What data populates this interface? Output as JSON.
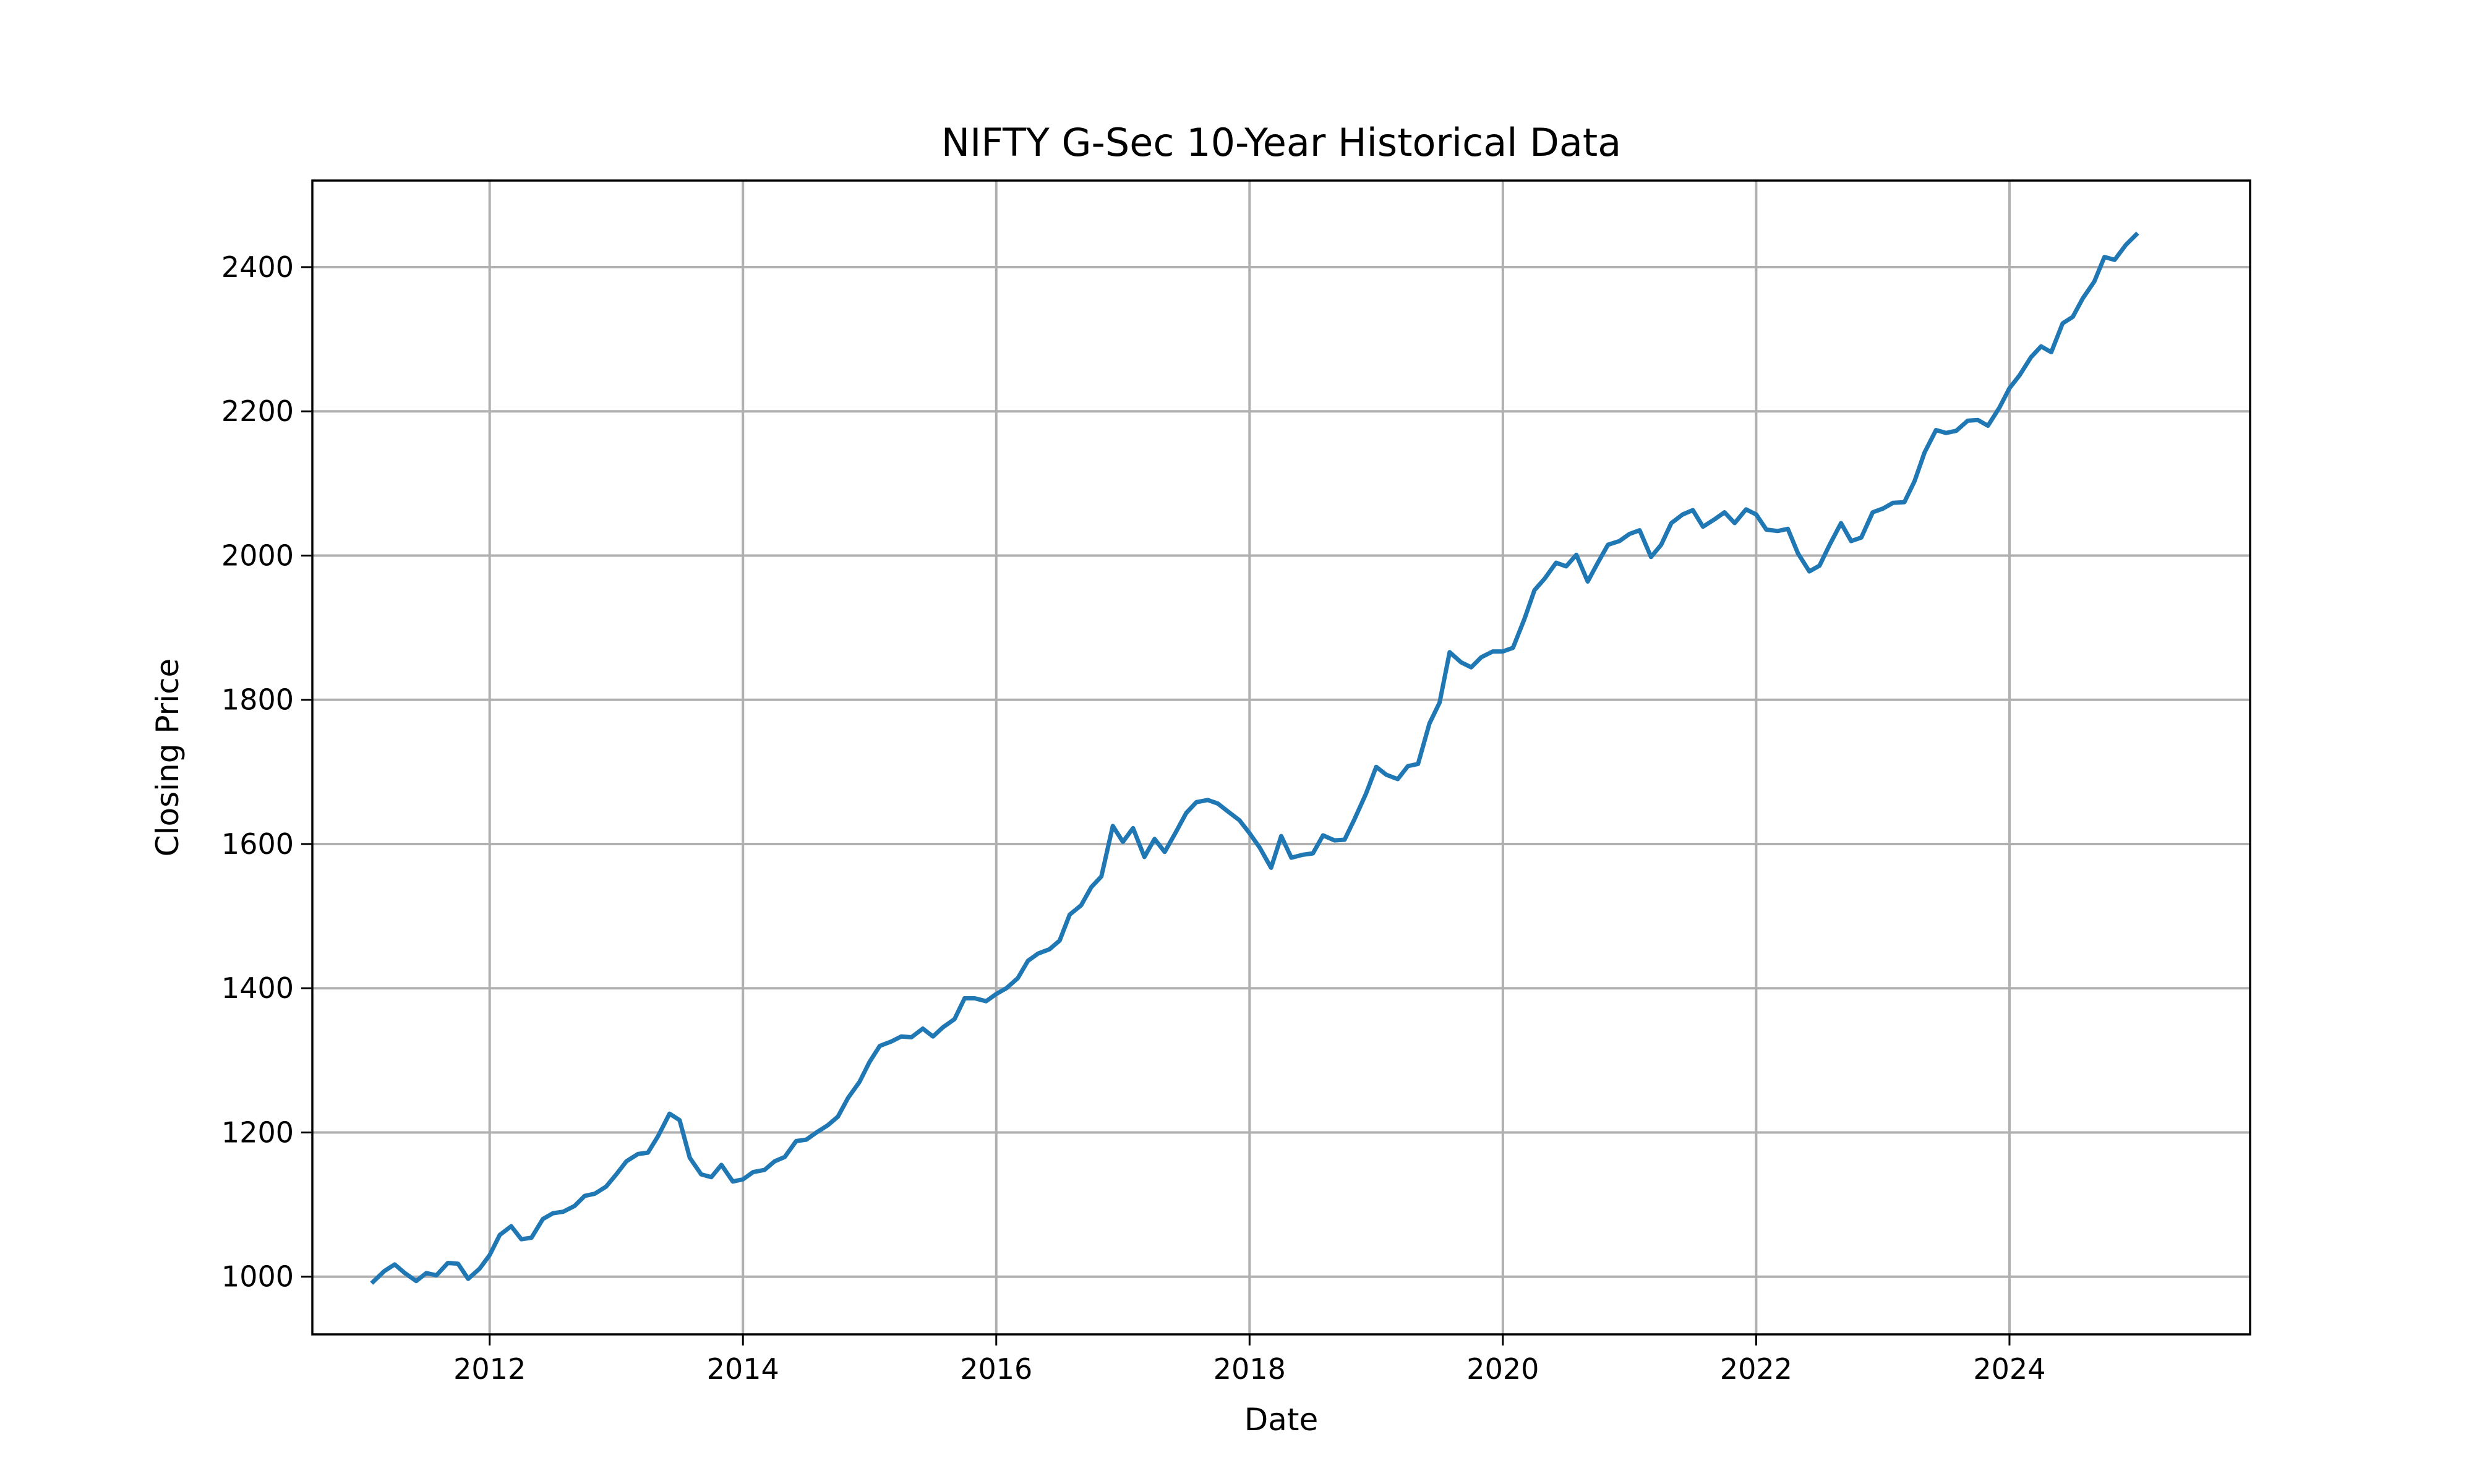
{
  "chart_data": {
    "type": "line",
    "title": "NIFTY G-Sec 10-Year Historical Data",
    "xlabel": "Date",
    "ylabel": "Closing Price",
    "grid": true,
    "xlim": [
      2010.6,
      2025.9
    ],
    "ylim": [
      920,
      2520
    ],
    "x_ticks": [
      2012,
      2014,
      2016,
      2018,
      2020,
      2022,
      2024
    ],
    "x_tick_labels": [
      "2012",
      "2014",
      "2016",
      "2018",
      "2020",
      "2022",
      "2024"
    ],
    "y_ticks": [
      1000,
      1200,
      1400,
      1600,
      1800,
      2000,
      2200,
      2400
    ],
    "y_tick_labels": [
      "1000",
      "1200",
      "1400",
      "1600",
      "1800",
      "2000",
      "2200",
      "2400"
    ],
    "series": [
      {
        "color": "#1f77b4",
        "x": [
          2011.08,
          2011.17,
          2011.25,
          2011.33,
          2011.42,
          2011.5,
          2011.58,
          2011.67,
          2011.75,
          2011.83,
          2011.92,
          2012.0,
          2012.08,
          2012.17,
          2012.25,
          2012.33,
          2012.42,
          2012.5,
          2012.58,
          2012.67,
          2012.75,
          2012.83,
          2012.92,
          2013.0,
          2013.08,
          2013.17,
          2013.25,
          2013.33,
          2013.42,
          2013.5,
          2013.58,
          2013.67,
          2013.75,
          2013.83,
          2013.92,
          2014.0,
          2014.08,
          2014.17,
          2014.25,
          2014.33,
          2014.42,
          2014.5,
          2014.58,
          2014.67,
          2014.75,
          2014.83,
          2014.92,
          2015.0,
          2015.08,
          2015.17,
          2015.25,
          2015.33,
          2015.42,
          2015.5,
          2015.58,
          2015.67,
          2015.75,
          2015.83,
          2015.92,
          2016.0,
          2016.08,
          2016.17,
          2016.25,
          2016.33,
          2016.42,
          2016.5,
          2016.58,
          2016.67,
          2016.75,
          2016.83,
          2016.92,
          2017.0,
          2017.08,
          2017.17,
          2017.25,
          2017.33,
          2017.42,
          2017.5,
          2017.58,
          2017.67,
          2017.75,
          2017.83,
          2017.92,
          2018.0,
          2018.08,
          2018.17,
          2018.25,
          2018.33,
          2018.42,
          2018.5,
          2018.58,
          2018.67,
          2018.75,
          2018.83,
          2018.92,
          2019.0,
          2019.08,
          2019.17,
          2019.25,
          2019.33,
          2019.42,
          2019.5,
          2019.58,
          2019.67,
          2019.75,
          2019.83,
          2019.92,
          2020.0,
          2020.08,
          2020.17,
          2020.25,
          2020.33,
          2020.42,
          2020.5,
          2020.58,
          2020.67,
          2020.75,
          2020.83,
          2020.92,
          2021.0,
          2021.08,
          2021.17,
          2021.25,
          2021.33,
          2021.42,
          2021.5,
          2021.58,
          2021.67,
          2021.75,
          2021.83,
          2021.92,
          2022.0,
          2022.08,
          2022.17,
          2022.25,
          2022.33,
          2022.42,
          2022.5,
          2022.58,
          2022.67,
          2022.75,
          2022.83,
          2022.92,
          2023.0,
          2023.08,
          2023.17,
          2023.25,
          2023.33,
          2023.42,
          2023.5,
          2023.58,
          2023.67,
          2023.75,
          2023.83,
          2023.92,
          2024.0,
          2024.08,
          2024.17,
          2024.25,
          2024.33,
          2024.42,
          2024.5,
          2024.58,
          2024.67,
          2024.75,
          2024.83,
          2024.92,
          2025.0
        ],
        "y": [
          993,
          1008,
          1017,
          1005,
          994,
          1005,
          1002,
          1019,
          1018,
          997,
          1011,
          1030,
          1058,
          1070,
          1052,
          1054,
          1080,
          1088,
          1090,
          1098,
          1112,
          1115,
          1125,
          1142,
          1160,
          1170,
          1172,
          1195,
          1226,
          1217,
          1165,
          1142,
          1138,
          1155,
          1132,
          1135,
          1145,
          1148,
          1160,
          1166,
          1188,
          1190,
          1200,
          1210,
          1222,
          1248,
          1270,
          1298,
          1320,
          1326,
          1333,
          1332,
          1344,
          1333,
          1346,
          1357,
          1386,
          1386,
          1382,
          1392,
          1400,
          1414,
          1438,
          1448,
          1454,
          1466,
          1502,
          1515,
          1540,
          1555,
          1625,
          1603,
          1622,
          1582,
          1607,
          1589,
          1617,
          1643,
          1658,
          1661,
          1656,
          1645,
          1633,
          1615,
          1595,
          1567,
          1611,
          1581,
          1585,
          1587,
          1612,
          1605,
          1606,
          1635,
          1670,
          1707,
          1696,
          1690,
          1708,
          1711,
          1767,
          1796,
          1866,
          1852,
          1845,
          1859,
          1867,
          1867,
          1872,
          1912,
          1952,
          1968,
          1990,
          1985,
          2001,
          1964,
          1990,
          2015,
          2020,
          2030,
          2035,
          1998,
          2015,
          2045,
          2057,
          2063,
          2040,
          2050,
          2060,
          2045,
          2064,
          2057,
          2036,
          2034,
          2037,
          2003,
          1978,
          1986,
          2015,
          2045,
          2020,
          2025,
          2060,
          2065,
          2073,
          2074,
          2103,
          2143,
          2174,
          2170,
          2173,
          2187,
          2188,
          2180,
          2205,
          2232,
          2250,
          2275,
          2290,
          2282,
          2322,
          2331,
          2357,
          2380,
          2414,
          2410,
          2431,
          2445
        ]
      }
    ]
  }
}
